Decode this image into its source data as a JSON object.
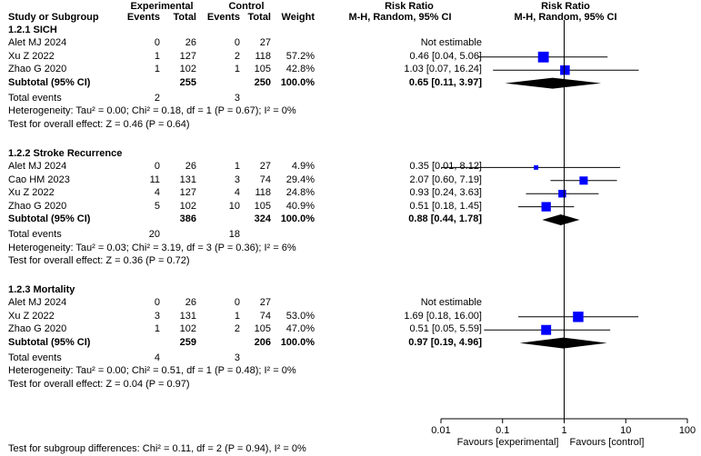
{
  "header": {
    "group_experimental": "Experimental",
    "group_control": "Control",
    "col_study": "Study or Subgroup",
    "col_events": "Events",
    "col_total": "Total",
    "col_weight": "Weight",
    "rr_title": "Risk Ratio",
    "rr_method": "M-H, Random, 95% CI",
    "plot_title": "Risk Ratio",
    "plot_method": "M-H, Random, 95% CI"
  },
  "colors": {
    "square": "#0000ff",
    "diamond": "#000000",
    "line": "#000000"
  },
  "chart_data": {
    "type": "forest",
    "scale": "log",
    "axis_ticks": [
      0.01,
      0.1,
      1,
      10,
      100
    ],
    "axis_tick_labels": [
      "0.01",
      "0.1",
      "1",
      "10",
      "100"
    ],
    "favours_left": "Favours [experimental]",
    "favours_right": "Favours [control]",
    "subgroups": [
      {
        "title": "1.2.1 SICH",
        "studies": [
          {
            "name": "Alet MJ 2024",
            "e_events": "0",
            "e_total": "26",
            "c_events": "0",
            "c_total": "27",
            "weight": "",
            "ci_text": "Not estimable",
            "rr": null,
            "lo": null,
            "hi": null
          },
          {
            "name": "Xu Z 2022",
            "e_events": "1",
            "e_total": "127",
            "c_events": "2",
            "c_total": "118",
            "weight": "57.2%",
            "ci_text": "0.46 [0.04, 5.06]",
            "rr": 0.46,
            "lo": 0.04,
            "hi": 5.06
          },
          {
            "name": "Zhao G 2020",
            "e_events": "1",
            "e_total": "102",
            "c_events": "1",
            "c_total": "105",
            "weight": "42.8%",
            "ci_text": "1.03 [0.07, 16.24]",
            "rr": 1.03,
            "lo": 0.07,
            "hi": 16.24
          }
        ],
        "subtotal": {
          "label": "Subtotal (95% CI)",
          "e_total": "255",
          "c_total": "250",
          "weight": "100.0%",
          "ci_text": "0.65 [0.11, 3.97]",
          "rr": 0.65,
          "lo": 0.11,
          "hi": 3.97
        },
        "total_events": {
          "label": "Total events",
          "e": "2",
          "c": "3"
        },
        "heterogeneity": "Heterogeneity: Tau² = 0.00; Chi² = 0.18, df = 1 (P = 0.67); I² = 0%",
        "overall": "Test for overall effect: Z = 0.46 (P = 0.64)"
      },
      {
        "title": "1.2.2 Stroke Recurrence",
        "studies": [
          {
            "name": "Alet MJ 2024",
            "e_events": "0",
            "e_total": "26",
            "c_events": "1",
            "c_total": "27",
            "weight": "4.9%",
            "ci_text": "0.35 [0.01, 8.12]",
            "rr": 0.35,
            "lo": 0.01,
            "hi": 8.12
          },
          {
            "name": "Cao HM 2023",
            "e_events": "11",
            "e_total": "131",
            "c_events": "3",
            "c_total": "74",
            "weight": "29.4%",
            "ci_text": "2.07 [0.60, 7.19]",
            "rr": 2.07,
            "lo": 0.6,
            "hi": 7.19
          },
          {
            "name": "Xu Z 2022",
            "e_events": "4",
            "e_total": "127",
            "c_events": "4",
            "c_total": "118",
            "weight": "24.8%",
            "ci_text": "0.93 [0.24, 3.63]",
            "rr": 0.93,
            "lo": 0.24,
            "hi": 3.63
          },
          {
            "name": "Zhao G 2020",
            "e_events": "5",
            "e_total": "102",
            "c_events": "10",
            "c_total": "105",
            "weight": "40.9%",
            "ci_text": "0.51 [0.18, 1.45]",
            "rr": 0.51,
            "lo": 0.18,
            "hi": 1.45
          }
        ],
        "subtotal": {
          "label": "Subtotal (95% CI)",
          "e_total": "386",
          "c_total": "324",
          "weight": "100.0%",
          "ci_text": "0.88 [0.44, 1.78]",
          "rr": 0.88,
          "lo": 0.44,
          "hi": 1.78
        },
        "total_events": {
          "label": "Total events",
          "e": "20",
          "c": "18"
        },
        "heterogeneity": "Heterogeneity: Tau² = 0.03; Chi² = 3.19, df = 3 (P = 0.36); I² = 6%",
        "overall": "Test for overall effect: Z = 0.36 (P = 0.72)"
      },
      {
        "title": "1.2.3 Mortality",
        "studies": [
          {
            "name": "Alet MJ 2024",
            "e_events": "0",
            "e_total": "26",
            "c_events": "0",
            "c_total": "27",
            "weight": "",
            "ci_text": "Not estimable",
            "rr": null,
            "lo": null,
            "hi": null
          },
          {
            "name": "Xu Z 2022",
            "e_events": "3",
            "e_total": "131",
            "c_events": "1",
            "c_total": "74",
            "weight": "53.0%",
            "ci_text": "1.69 [0.18, 16.00]",
            "rr": 1.69,
            "lo": 0.18,
            "hi": 16.0
          },
          {
            "name": "Zhao G 2020",
            "e_events": "1",
            "e_total": "102",
            "c_events": "2",
            "c_total": "105",
            "weight": "47.0%",
            "ci_text": "0.51 [0.05, 5.59]",
            "rr": 0.51,
            "lo": 0.05,
            "hi": 5.59
          }
        ],
        "subtotal": {
          "label": "Subtotal (95% CI)",
          "e_total": "259",
          "c_total": "206",
          "weight": "100.0%",
          "ci_text": "0.97 [0.19, 4.96]",
          "rr": 0.97,
          "lo": 0.19,
          "hi": 4.96
        },
        "total_events": {
          "label": "Total events",
          "e": "4",
          "c": "3"
        },
        "heterogeneity": "Heterogeneity: Tau² = 0.00; Chi² = 0.51, df = 1 (P = 0.48); I² = 0%",
        "overall": "Test for overall effect: Z = 0.04 (P = 0.97)"
      }
    ],
    "subgroup_differences": "Test for subgroup differences: Chi² = 0.11, df = 2 (P = 0.94), I² = 0%"
  }
}
